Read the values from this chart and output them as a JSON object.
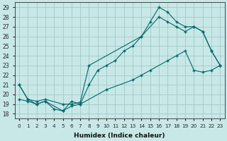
{
  "xlabel": "Humidex (Indice chaleur)",
  "bg_color": "#c8e8e8",
  "grid_color": "#a8cccc",
  "line_color": "#006868",
  "xlim": [
    -0.5,
    23.5
  ],
  "ylim": [
    17.5,
    29.5
  ],
  "xticks": [
    0,
    1,
    2,
    3,
    4,
    5,
    6,
    7,
    8,
    9,
    10,
    11,
    12,
    13,
    14,
    15,
    16,
    17,
    18,
    19,
    20,
    21,
    22,
    23
  ],
  "yticks": [
    18,
    19,
    20,
    21,
    22,
    23,
    24,
    25,
    26,
    27,
    28,
    29
  ],
  "series1_x": [
    0,
    1,
    2,
    3,
    4,
    5,
    6,
    7,
    8,
    9,
    10,
    11,
    12,
    13,
    14,
    15,
    16,
    17,
    18,
    19,
    20,
    21,
    22,
    23
  ],
  "series1_y": [
    21.0,
    19.5,
    19.0,
    19.3,
    18.5,
    18.3,
    19.3,
    19.0,
    21.0,
    22.5,
    23.0,
    23.5,
    24.5,
    25.0,
    26.0,
    27.5,
    29.0,
    28.5,
    27.5,
    27.0,
    27.0,
    26.5,
    24.5,
    23.0
  ],
  "series2_x": [
    0,
    1,
    2,
    3,
    5,
    6,
    7,
    8,
    14,
    16,
    17,
    18,
    19,
    20,
    21,
    22,
    23
  ],
  "series2_y": [
    21.0,
    19.5,
    19.3,
    19.5,
    19.0,
    19.0,
    19.2,
    23.0,
    26.0,
    28.0,
    27.5,
    27.0,
    26.5,
    27.0,
    26.5,
    24.5,
    23.0
  ],
  "series3_x": [
    0,
    1,
    2,
    3,
    5,
    6,
    7,
    10,
    13,
    14,
    15,
    17,
    18,
    19,
    20,
    21,
    22,
    23
  ],
  "series3_y": [
    19.5,
    19.3,
    19.0,
    19.3,
    18.3,
    18.8,
    19.0,
    20.5,
    21.5,
    22.0,
    22.5,
    23.5,
    24.0,
    24.5,
    22.5,
    22.3,
    22.5,
    23.0
  ]
}
